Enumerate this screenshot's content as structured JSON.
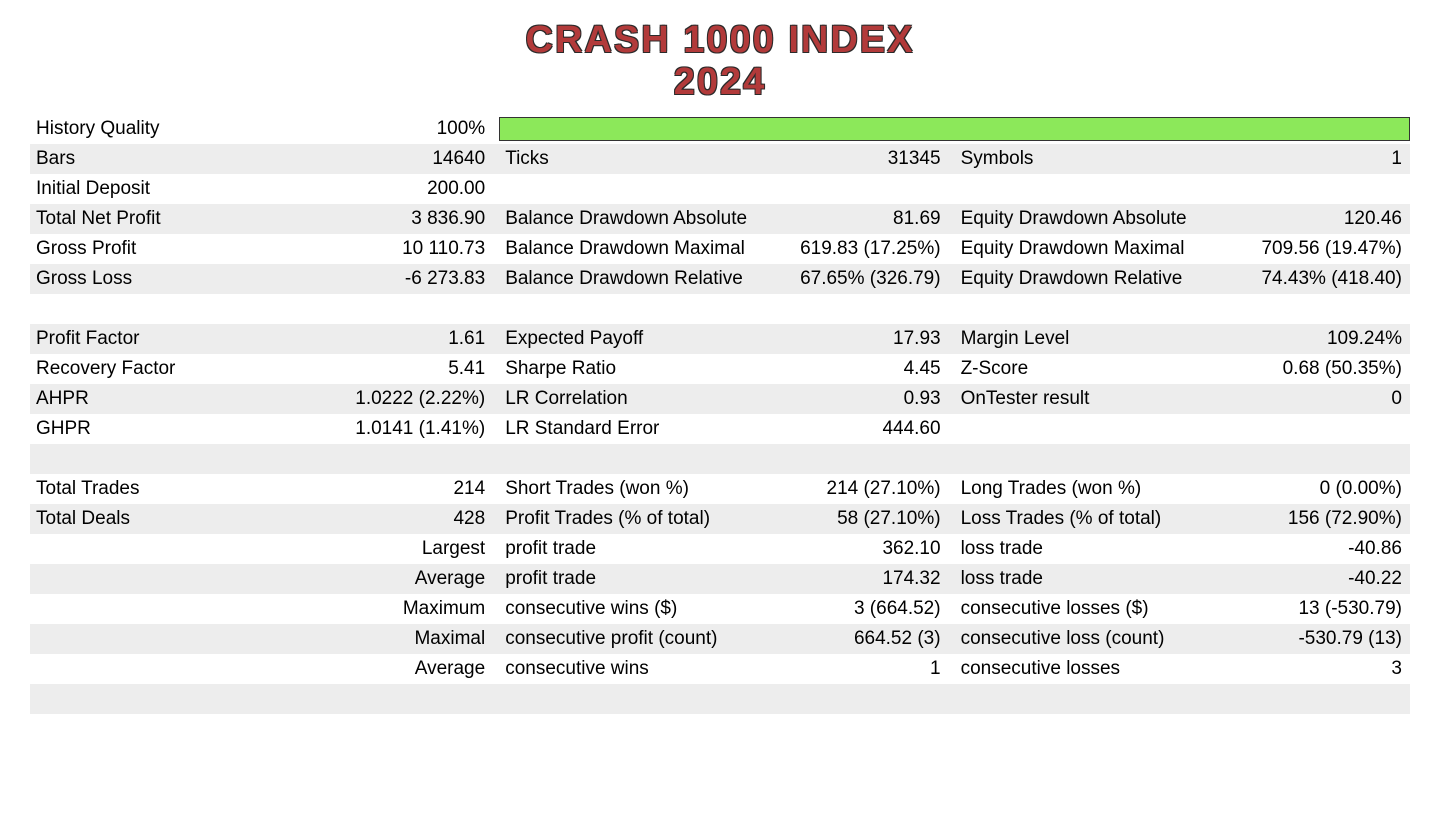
{
  "title": {
    "line1": "CRASH 1000 INDEX",
    "line2": "2024",
    "color": "#b23a3a",
    "outline": "#2b2b2b"
  },
  "colors": {
    "row_alt": "#ededed",
    "bar_fill": "#8ce85a",
    "bar_border": "#333333",
    "background": "#ffffff",
    "text": "#000000"
  },
  "history_quality": {
    "label": "History Quality",
    "value": "100%",
    "bar_pct": 100
  },
  "rows": [
    {
      "alt": true,
      "c1": "Bars",
      "c2": "14640",
      "c3": "Ticks",
      "c4": "31345",
      "c5": "Symbols",
      "c6": "1"
    },
    {
      "alt": false,
      "c1": "Initial Deposit",
      "c2": "200.00",
      "c3": "",
      "c4": "",
      "c5": "",
      "c6": ""
    },
    {
      "alt": true,
      "c1": "Total Net Profit",
      "c2": "3 836.90",
      "c3": "Balance Drawdown Absolute",
      "c4": "81.69",
      "c5": "Equity Drawdown Absolute",
      "c6": "120.46"
    },
    {
      "alt": false,
      "c1": "Gross Profit",
      "c2": "10 110.73",
      "c3": "Balance Drawdown Maximal",
      "c4": "619.83 (17.25%)",
      "c5": "Equity Drawdown Maximal",
      "c6": "709.56 (19.47%)"
    },
    {
      "alt": true,
      "c1": "Gross Loss",
      "c2": "-6 273.83",
      "c3": "Balance Drawdown Relative",
      "c4": "67.65% (326.79)",
      "c5": "Equity Drawdown Relative",
      "c6": "74.43% (418.40)"
    },
    {
      "spacer": true,
      "alt": false
    },
    {
      "alt": true,
      "c1": "Profit Factor",
      "c2": "1.61",
      "c3": "Expected Payoff",
      "c4": "17.93",
      "c5": "Margin Level",
      "c6": "109.24%"
    },
    {
      "alt": false,
      "c1": "Recovery Factor",
      "c2": "5.41",
      "c3": "Sharpe Ratio",
      "c4": "4.45",
      "c5": "Z-Score",
      "c6": "0.68 (50.35%)"
    },
    {
      "alt": true,
      "c1": "AHPR",
      "c2": "1.0222 (2.22%)",
      "c3": "LR Correlation",
      "c4": "0.93",
      "c5": "OnTester result",
      "c6": "0"
    },
    {
      "alt": false,
      "c1": "GHPR",
      "c2": "1.0141 (1.41%)",
      "c3": "LR Standard Error",
      "c4": "444.60",
      "c5": "",
      "c6": ""
    },
    {
      "spacer": true,
      "alt": true
    },
    {
      "alt": false,
      "c1": "Total Trades",
      "c2": "214",
      "c3": "Short Trades (won %)",
      "c4": "214 (27.10%)",
      "c5": "Long Trades (won %)",
      "c6": "0 (0.00%)"
    },
    {
      "alt": true,
      "c1": "Total Deals",
      "c2": "428",
      "c3": "Profit Trades (% of total)",
      "c4": "58 (27.10%)",
      "c5": "Loss Trades (% of total)",
      "c6": "156 (72.90%)"
    },
    {
      "alt": false,
      "c1": "",
      "c2": "Largest",
      "c3": "profit trade",
      "c4": "362.10",
      "c5": "loss trade",
      "c6": "-40.86"
    },
    {
      "alt": true,
      "c1": "",
      "c2": "Average",
      "c3": "profit trade",
      "c4": "174.32",
      "c5": "loss trade",
      "c6": "-40.22"
    },
    {
      "alt": false,
      "c1": "",
      "c2": "Maximum",
      "c3": "consecutive wins ($)",
      "c4": "3 (664.52)",
      "c5": "consecutive losses ($)",
      "c6": "13 (-530.79)"
    },
    {
      "alt": true,
      "c1": "",
      "c2": "Maximal",
      "c3": "consecutive profit (count)",
      "c4": "664.52 (3)",
      "c5": "consecutive loss (count)",
      "c6": "-530.79 (13)"
    },
    {
      "alt": false,
      "c1": "",
      "c2": "Average",
      "c3": "consecutive wins",
      "c4": "1",
      "c5": "consecutive losses",
      "c6": "3"
    },
    {
      "spacer": true,
      "alt": true
    }
  ]
}
